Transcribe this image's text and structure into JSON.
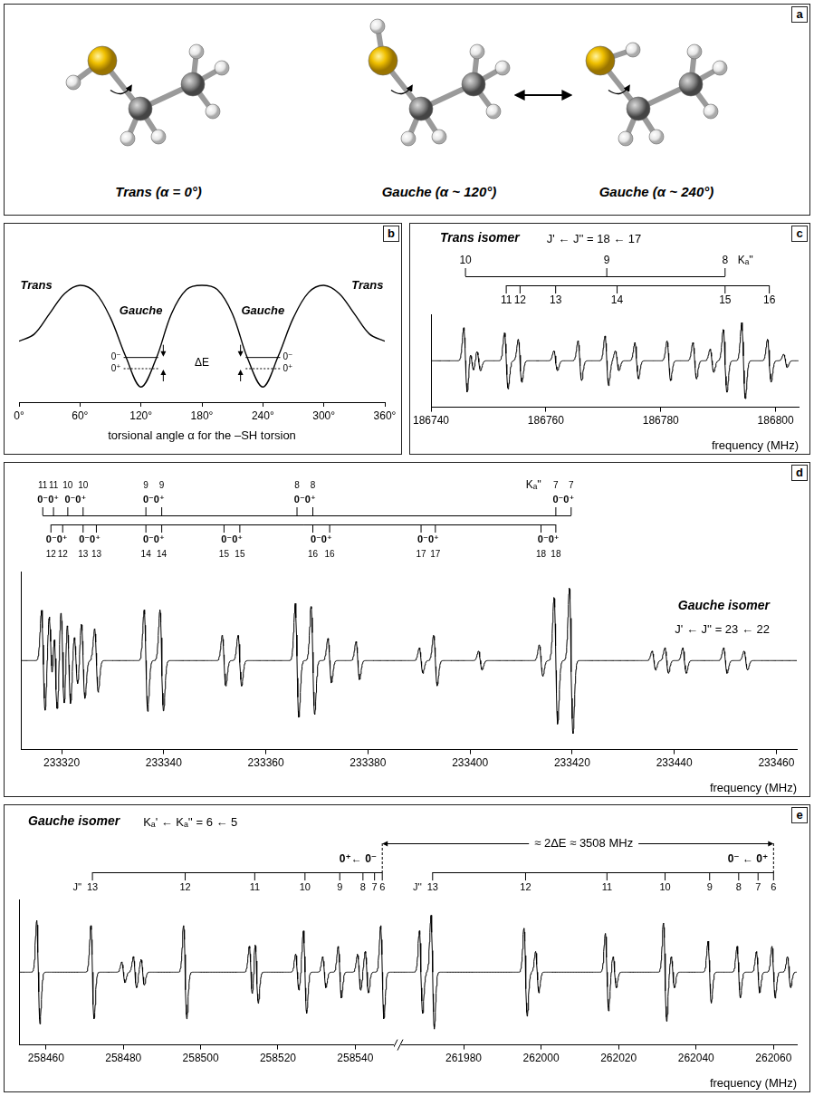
{
  "chart_data": [
    {
      "panel": "a",
      "type": "diagram",
      "labels": [
        "Trans (α = 0°)",
        "Gauche (α ~ 120°)",
        "Gauche (α ~ 240°)"
      ]
    },
    {
      "panel": "b",
      "type": "line",
      "x": [
        0,
        15,
        30,
        45,
        60,
        75,
        90,
        105,
        120,
        135,
        150,
        165,
        180,
        195,
        210,
        225,
        240,
        255,
        270,
        285,
        300,
        315,
        330,
        345,
        360
      ],
      "values": [
        0.45,
        0.52,
        0.72,
        0.92,
        1.0,
        0.93,
        0.68,
        0.3,
        0.0,
        0.28,
        0.72,
        0.96,
        1.0,
        0.96,
        0.72,
        0.28,
        0.0,
        0.3,
        0.68,
        0.93,
        1.0,
        0.92,
        0.72,
        0.52,
        0.45
      ],
      "xlim": [
        0,
        360
      ],
      "ylim": [
        -0.15,
        1.25
      ],
      "xticks": [
        {
          "value": 0,
          "label": "0°"
        },
        {
          "value": 60,
          "label": "60°"
        },
        {
          "value": 120,
          "label": "120°"
        },
        {
          "value": 180,
          "label": "180°"
        },
        {
          "value": 240,
          "label": "240°"
        },
        {
          "value": 300,
          "label": "300°"
        },
        {
          "value": 360,
          "label": "360°"
        }
      ],
      "x_label": "torsional angle α for the –SH torsion",
      "tick_labels": "x",
      "annotations": [
        {
          "text": "Trans",
          "x": 17,
          "y": 1.0
        },
        {
          "text": "Gauche",
          "x": 120,
          "y": 0.75
        },
        {
          "text": "Gauche",
          "x": 240,
          "y": 0.75
        },
        {
          "text": "Trans",
          "x": 343,
          "y": 1.0
        }
      ],
      "wells": [
        120,
        240
      ],
      "levels": [
        {
          "label": "0⁻",
          "value": 0.29,
          "line_style": "solid"
        },
        {
          "label": "0⁺",
          "value": 0.18,
          "line_style": "dotted"
        }
      ],
      "splitting_label": "ΔE"
    },
    {
      "panel": "c",
      "type": "spectrum",
      "title": "Trans isomer",
      "subtitle": "J' ← J'' = 18 ← 17",
      "x": [
        186746.0,
        186747.1,
        186748.3,
        186753.1,
        186755.5,
        186761.7,
        186765.9,
        186770.6,
        186772.4,
        186775.8,
        186781.4,
        186785.9,
        186788.9,
        186791.2,
        186794.4,
        186798.9,
        186801.7
      ],
      "values": [
        1.0,
        0.3,
        0.3,
        0.85,
        0.65,
        0.3,
        0.6,
        0.75,
        0.3,
        0.55,
        0.6,
        0.55,
        0.35,
        0.95,
        1.15,
        0.65,
        0.2
      ],
      "xlim": [
        186740,
        186804
      ],
      "ylim": [
        -1.4,
        1.4
      ],
      "xticks": [
        186740,
        186760,
        186780,
        186800
      ],
      "x_label": "frequency (MHz)",
      "tick_labels": "x",
      "ladder_label": "Kₐ''",
      "ladders": [
        {
          "labels": [
            10,
            9,
            8
          ],
          "x": [
            186746.0,
            186770.6,
            186791.2
          ]
        },
        {
          "labels": [
            11,
            12,
            13,
            14,
            15,
            16
          ],
          "x": [
            186753.1,
            186755.5,
            186761.7,
            186772.4,
            186791.2,
            186798.9
          ]
        }
      ]
    },
    {
      "panel": "d",
      "type": "spectrum",
      "title": "Gauche isomer",
      "subtitle": "J' ← J'' = 23 ← 22",
      "x": [
        233316.4,
        233317.9,
        233318.8,
        233320.2,
        233321.4,
        233322.8,
        233324.2,
        233326.8,
        233336.5,
        233339.6,
        233351.8,
        233354.9,
        233366.1,
        233369.2,
        233372.5,
        233378.0,
        233390.4,
        233393.2,
        233402.0,
        233413.9,
        233416.8,
        233419.8,
        233436.0,
        233438.5,
        233442.0,
        233450.0,
        233454.0
      ],
      "values": [
        0.8,
        0.7,
        0.8,
        0.8,
        0.7,
        0.4,
        0.6,
        0.5,
        0.8,
        0.8,
        0.4,
        0.4,
        0.9,
        0.85,
        0.35,
        0.3,
        0.2,
        0.4,
        0.15,
        0.25,
        1.0,
        1.15,
        0.15,
        0.2,
        0.2,
        0.2,
        0.15
      ],
      "xlim": [
        233312,
        233464
      ],
      "ylim": [
        -1.4,
        1.4
      ],
      "xticks": [
        233320,
        233340,
        233360,
        233380,
        233400,
        233420,
        233440,
        233460
      ],
      "x_label": "frequency (MHz)",
      "tick_labels": "x",
      "ladder_label": "Kₐ''",
      "ladders": [
        {
          "labels": [
            11,
            11,
            10,
            10,
            9,
            9,
            8,
            8,
            7,
            7
          ],
          "states": [
            "0⁻",
            "0⁺",
            "0⁻",
            "0⁺",
            "0⁻",
            "0⁺",
            "0⁻",
            "0⁺",
            "0⁻",
            "0⁺"
          ],
          "x": [
            233316.3,
            233318.4,
            233321.2,
            233324.2,
            233336.5,
            233339.6,
            233366.1,
            233369.2,
            233416.8,
            233419.8
          ]
        },
        {
          "labels": [
            12,
            12,
            13,
            13,
            14,
            14,
            15,
            15,
            16,
            16,
            17,
            17,
            18,
            18
          ],
          "states": [
            "0⁻",
            "0⁺",
            "0⁻",
            "0⁺",
            "0⁻",
            "0⁺",
            "0⁻",
            "0⁺",
            "0⁻",
            "0⁺",
            "0⁻",
            "0⁺",
            "0⁻",
            "0⁺"
          ],
          "x": [
            233317.9,
            233320.2,
            233324.2,
            233326.8,
            233336.5,
            233339.6,
            233351.8,
            233354.9,
            233369.2,
            233372.5,
            233390.4,
            233393.2,
            233413.9,
            233416.8
          ]
        }
      ]
    },
    {
      "panel": "e",
      "type": "spectrum",
      "title": "Gauche isomer",
      "subtitle": "Kₐ' ← Kₐ'' = 6 ← 5",
      "annotation": "≈ 2ΔE ≈ 3508 MHz",
      "x_label": "frequency (MHz)",
      "ylim": [
        -1.4,
        1.4
      ],
      "tick_labels": "x",
      "ladder_label": "J''",
      "parts": [
        {
          "transition": "0⁺← 0⁻",
          "xlim": [
            258453,
            258550
          ],
          "xticks": [
            258460,
            258480,
            258500,
            258520,
            258540
          ],
          "x": [
            258458,
            258472,
            258480,
            258483,
            258485,
            258496,
            258513,
            258514.5,
            258525,
            258527,
            258532,
            258536,
            258541,
            258543,
            258547
          ],
          "values": [
            1.0,
            0.9,
            0.2,
            0.3,
            0.25,
            0.9,
            0.5,
            0.6,
            0.35,
            0.8,
            0.3,
            0.5,
            0.35,
            0.4,
            0.9
          ],
          "ladder": {
            "labels": [
              13,
              12,
              11,
              10,
              9,
              8,
              7,
              6
            ],
            "x": [
              258472,
              258496,
              258514,
              258527,
              258536,
              258542,
              258545,
              258547
            ]
          }
        },
        {
          "transition": "0⁻ ← 0⁺",
          "xlim": [
            261962,
            262066
          ],
          "xticks": [
            261980,
            262000,
            262020,
            262040,
            262060
          ],
          "x": [
            261969,
            261972,
            261996,
            261999,
            262017,
            262019,
            262032,
            262034,
            262043.5,
            262051,
            262056,
            262060,
            262064
          ],
          "values": [
            0.8,
            1.1,
            0.85,
            0.4,
            0.75,
            0.3,
            0.95,
            0.3,
            0.6,
            0.5,
            0.4,
            0.5,
            0.3
          ],
          "ladder": {
            "labels": [
              13,
              12,
              11,
              10,
              9,
              8,
              7,
              6
            ],
            "x": [
              261972,
              261996,
              262017,
              262032,
              262043.5,
              262051,
              262056,
              262060
            ]
          }
        }
      ]
    }
  ]
}
